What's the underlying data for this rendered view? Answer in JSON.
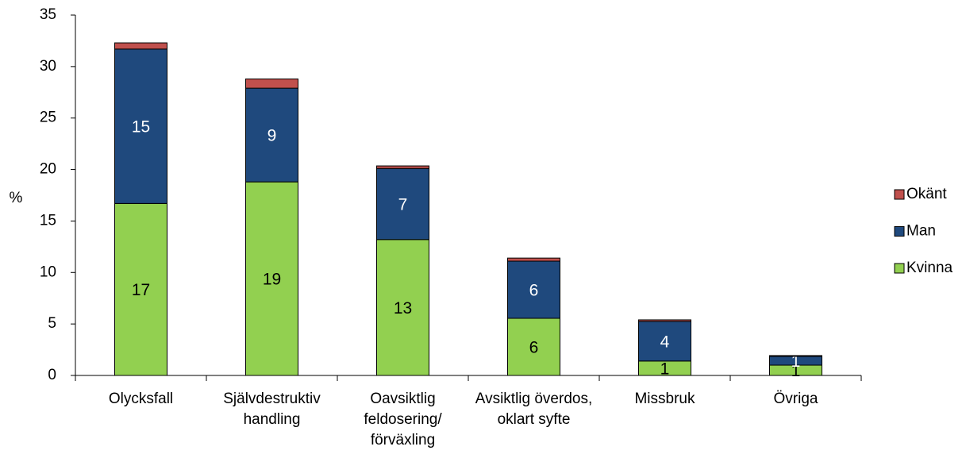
{
  "chart_data": {
    "type": "stacked_bar",
    "y_label": "%",
    "categories": [
      "Olycksfall",
      "Självdestruktiv\nhandling",
      "Oavsiktlig\nfeldosering/\nförväxling",
      "Avsiktlig överdos,\noklart syfte",
      "Missbruk",
      "Övriga"
    ],
    "series": [
      {
        "name": "Kvinna",
        "color": "#92d050",
        "label_color": "#000000",
        "values": [
          16.7,
          18.8,
          13.2,
          5.55,
          1.4,
          1.0
        ],
        "value_labels": [
          "17",
          "19",
          "13",
          "6",
          "1",
          "1"
        ]
      },
      {
        "name": "Man",
        "color": "#1f497d",
        "label_color": "#ffffff",
        "values": [
          15.0,
          9.1,
          6.9,
          5.55,
          3.85,
          0.85
        ],
        "value_labels": [
          "15",
          "9",
          "7",
          "6",
          "4",
          "1"
        ]
      },
      {
        "name": "Okänt",
        "color": "#c0504d",
        "values": [
          0.6,
          0.9,
          0.25,
          0.3,
          0.15,
          0.08
        ]
      }
    ],
    "ylim": [
      0,
      35
    ],
    "yticks": [
      0,
      5,
      10,
      15,
      20,
      25,
      30,
      35
    ],
    "legend": "right"
  }
}
